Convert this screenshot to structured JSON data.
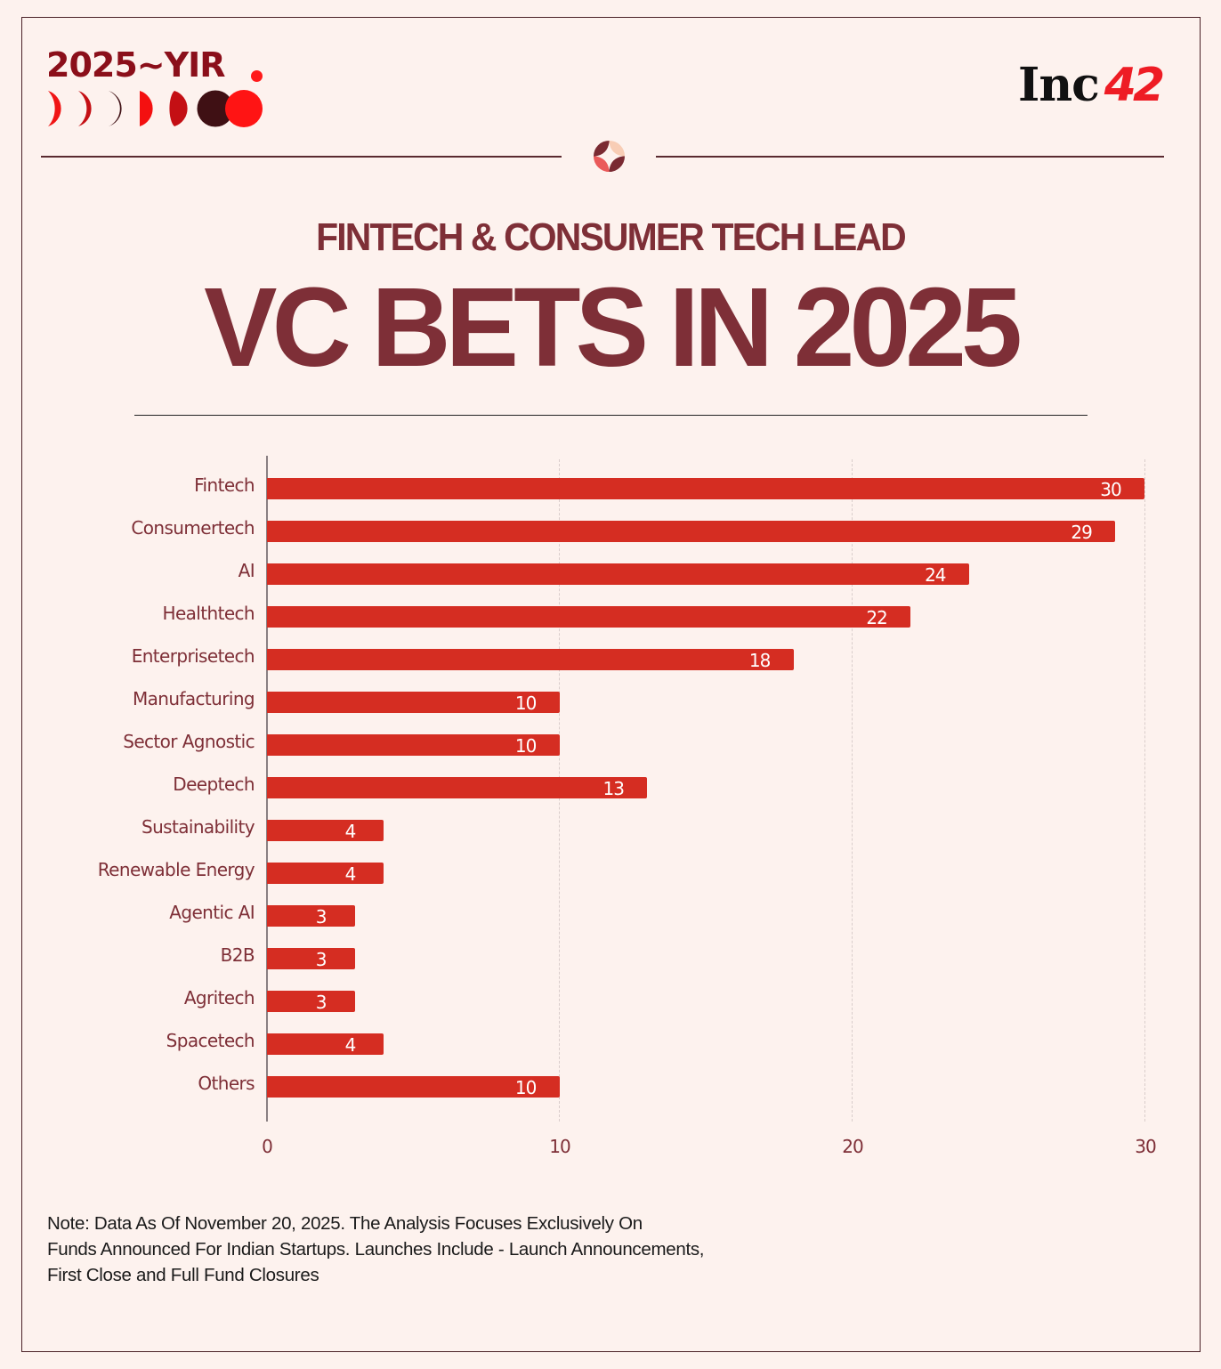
{
  "branding": {
    "series_logo_text": "2025~YIR",
    "publisher_logo_text": "Inc",
    "publisher_logo_number": "42",
    "colors": {
      "background": "#fdf2ee",
      "title": "#7e2f37",
      "bar": "#d52d22",
      "logo_dark_red": "#8b0f1a",
      "logo_red": "#ff1a1a",
      "logo_maroon": "#3f1014",
      "inc42_red": "#ee1c24"
    }
  },
  "header": {
    "subtitle": "FINTECH & CONSUMER TECH LEAD",
    "title": "VC BETS IN 2025"
  },
  "chart_data": {
    "type": "bar",
    "orientation": "horizontal",
    "title": "FINTECH & CONSUMER TECH LEAD VC BETS IN 2025",
    "xlabel": "",
    "ylabel": "",
    "categories": [
      "Fintech",
      "Consumertech",
      "AI",
      "Healthtech",
      "Enterprisetech",
      "Manufacturing",
      "Sector Agnostic",
      "Deeptech",
      "Sustainability",
      "Renewable Energy",
      "Agentic AI",
      "B2B",
      "Agritech",
      "Spacetech",
      "Others"
    ],
    "values": [
      30,
      29,
      24,
      22,
      18,
      10,
      10,
      13,
      4,
      4,
      3,
      3,
      3,
      4,
      10
    ],
    "xlim": [
      0,
      30
    ],
    "xticks": [
      "0",
      "10",
      "20",
      "30"
    ],
    "grid": "vertical dashed at 10, 20, 30",
    "legend": "none",
    "data_labels": "inside bar end, white"
  },
  "footnote": {
    "lines": [
      "Note: Data As Of November 20, 2025. The Analysis Focuses Exclusively On",
      "Funds Announced For Indian Startups. Launches Include - Launch Announcements,",
      "First Close and Full Fund Closures"
    ]
  }
}
